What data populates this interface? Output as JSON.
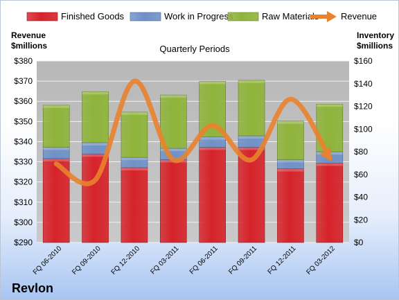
{
  "colors": {
    "finished_goods": "#d6232a",
    "work_in_progress": "#6f91c7",
    "raw_materials": "#8fb43a",
    "revenue": "#e9822e",
    "plot_bg": "#c9c9c9"
  },
  "company": "Revlon",
  "chart_data": {
    "type": "bar",
    "title": "Quarterly Periods",
    "categories": [
      "FQ 06-2010",
      "FQ 09-2010",
      "FQ 12-2010",
      "FQ 03-2011",
      "FQ 06-2011",
      "FQ 09-2011",
      "FQ 12-2011",
      "FQ 03-2012"
    ],
    "left_axis": {
      "label_line1": "Revenue",
      "label_line2": "$millions",
      "range": [
        290,
        380
      ],
      "ticks": [
        "$290",
        "$300",
        "$310",
        "$320",
        "$330",
        "$340",
        "$350",
        "$360",
        "$370",
        "$380"
      ]
    },
    "right_axis": {
      "label_line1": "Inventory",
      "label_line2": "$millions",
      "range": [
        0,
        160
      ],
      "ticks": [
        "$0",
        "$20",
        "$40",
        "$60",
        "$80",
        "$100",
        "$120",
        "$140",
        "$160"
      ]
    },
    "series": [
      {
        "name": "Finished Goods",
        "type": "stacked-bar",
        "axis": "right",
        "values": [
          74,
          78,
          66,
          73,
          84,
          84,
          65,
          70
        ]
      },
      {
        "name": "Work in Progress",
        "type": "stacked-bar",
        "axis": "right",
        "values": [
          10,
          10,
          9,
          10,
          9,
          10,
          8,
          10
        ]
      },
      {
        "name": "Raw Materials",
        "type": "stacked-bar",
        "axis": "right",
        "values": [
          37,
          45,
          40,
          47,
          49,
          49,
          34,
          42
        ]
      },
      {
        "name": "Revenue",
        "type": "line",
        "axis": "left",
        "values": [
          329,
          321,
          370,
          331,
          348,
          331,
          361,
          332
        ]
      }
    ],
    "legend": "top",
    "grid": true
  }
}
